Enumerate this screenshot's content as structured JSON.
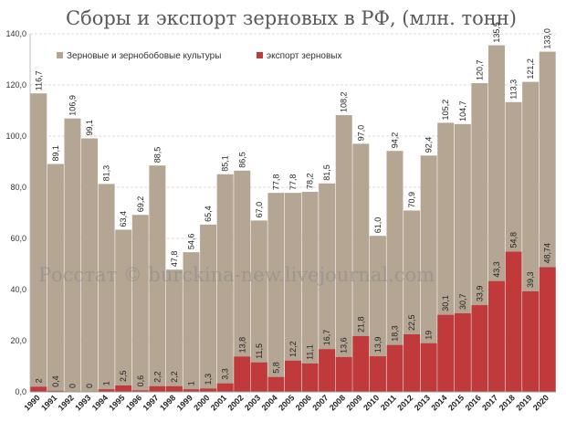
{
  "chart_data": {
    "type": "bar",
    "title": "Сборы и экспорт зерновых в РФ, (млн. тонн)",
    "watermark": "Росстат © burckina-new.livejournal.com",
    "ylim": [
      0,
      140
    ],
    "yticks": [
      "0,0",
      "20,0",
      "40,0",
      "60,0",
      "80,0",
      "100,0",
      "120,0",
      "140,0"
    ],
    "grid": true,
    "legend_position": "top-left",
    "categories": [
      "1990",
      "1991",
      "1992",
      "1993",
      "1994",
      "1995",
      "1996",
      "1997",
      "1998",
      "1999",
      "2000",
      "2001",
      "2002",
      "2003",
      "2004",
      "2005",
      "2006",
      "2007",
      "2008",
      "2009",
      "2010",
      "2011",
      "2012",
      "2013",
      "2014",
      "2015",
      "2016",
      "2017",
      "2018",
      "2019",
      "2020"
    ],
    "series": [
      {
        "name": "Зерновые и зернобобовые культуры",
        "color": "#b5a593",
        "values": [
          116.7,
          89.1,
          106.9,
          99.1,
          81.3,
          63.4,
          69.2,
          88.5,
          47.8,
          54.6,
          65.4,
          85.1,
          86.5,
          67.0,
          77.8,
          77.8,
          78.2,
          81.5,
          108.2,
          97.0,
          61.0,
          94.2,
          70.9,
          92.4,
          105.2,
          104.7,
          120.7,
          135.5,
          113.3,
          121.2,
          133.0
        ],
        "labels": [
          "116,7",
          "89,1",
          "106,9",
          "99,1",
          "81,3",
          "63,4",
          "69,2",
          "88,5",
          "47,8",
          "54,6",
          "65,4",
          "85,1",
          "86,5",
          "67,0",
          "77,8",
          "77,8",
          "78,2",
          "81,5",
          "108,2",
          "97,0",
          "61,0",
          "94,2",
          "70,9",
          "92,4",
          "105,2",
          "104,7",
          "120,7",
          "135,5",
          "113,3",
          "121,2",
          "133,0"
        ]
      },
      {
        "name": "экспорт зерновых",
        "color": "#c0393b",
        "values": [
          2,
          0.4,
          0,
          0,
          1,
          2.5,
          0.6,
          2.2,
          2.2,
          1,
          1.3,
          3.3,
          13.8,
          11.5,
          5.8,
          12.2,
          11.1,
          16.7,
          13.6,
          21.8,
          13.9,
          18.3,
          22.5,
          19,
          30.1,
          30.7,
          33.9,
          43.3,
          54.8,
          39.3,
          48.74
        ],
        "labels": [
          "2",
          "0,4",
          "0",
          "0",
          "1",
          "2,5",
          "0,6",
          "2,2",
          "2,2",
          "1",
          "1,3",
          "3,3",
          "13,8",
          "11,5",
          "5,8",
          "12,2",
          "11,1",
          "16,7",
          "13,6",
          "21,8",
          "13,9",
          "18,3",
          "22,5",
          "19",
          "30,1",
          "30,7",
          "33,9",
          "43,3",
          "54,8",
          "39,3",
          "48,74"
        ]
      }
    ]
  }
}
